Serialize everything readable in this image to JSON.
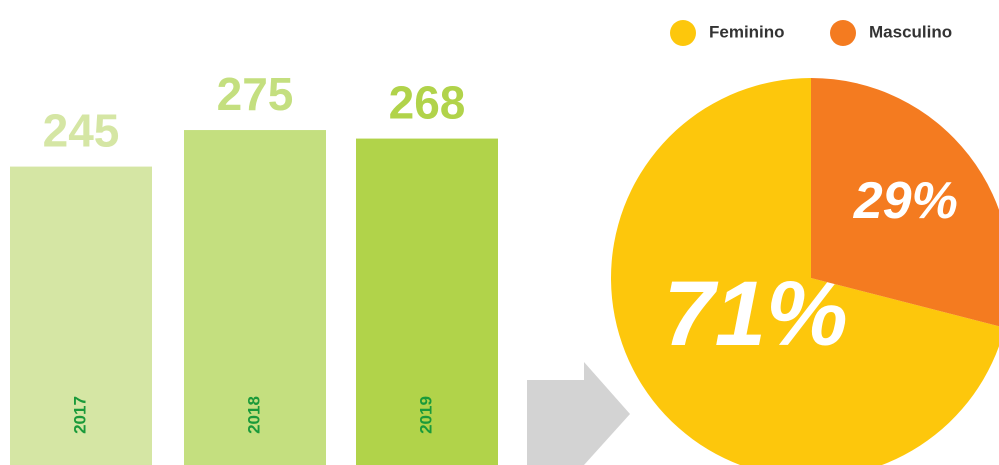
{
  "chart_data": [
    {
      "type": "bar",
      "categories": [
        "2017",
        "2018",
        "2019"
      ],
      "values": [
        245,
        275,
        268
      ],
      "colors": [
        "#d5e6a4",
        "#c4df7f",
        "#b1d34a"
      ]
    },
    {
      "type": "pie",
      "categories": [
        "Feminino",
        "Masculino"
      ],
      "values": [
        71,
        29
      ],
      "value_labels": [
        "71%",
        "29%"
      ],
      "colors": [
        "#fdc70c",
        "#f47b20"
      ],
      "legend": "top-right"
    }
  ]
}
